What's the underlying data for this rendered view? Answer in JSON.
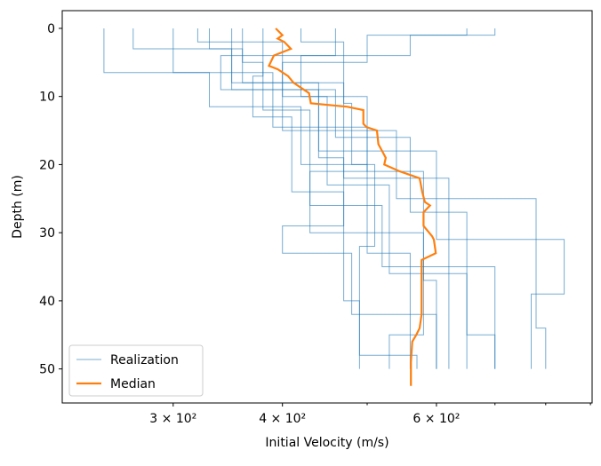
{
  "chart_data": {
    "type": "step-profile",
    "xlabel": "Initial Velocity (m/s)",
    "ylabel": "Depth (m)",
    "xscale": "log",
    "yinverted": true,
    "xlim": [
      224,
      904
    ],
    "ylim": [
      55,
      -2.6
    ],
    "xticks": [
      {
        "value": 300,
        "label": "3 × 10²"
      },
      {
        "value": 400,
        "label": "4 × 10²"
      },
      {
        "value": 600,
        "label": "6 × 10²"
      }
    ],
    "xminor_ticks": [
      500,
      700,
      800,
      900
    ],
    "yticks": [
      0,
      10,
      20,
      30,
      40,
      50
    ],
    "legend": "lower left",
    "series": [
      {
        "name": "Realization",
        "color": "#1f77b4",
        "lines": [
          {
            "x": [
              250,
              250,
              330,
              330,
              420,
              420,
              500,
              500,
              560,
              560
            ],
            "y": [
              0,
              6.5,
              6.5,
              11.5,
              11.5,
              20,
              20,
              33,
              33,
              50
            ]
          },
          {
            "x": [
              270,
              270,
              360,
              360,
              470,
              470,
              620,
              620
            ],
            "y": [
              0,
              3,
              3,
              8,
              8,
              22,
              22,
              50
            ]
          },
          {
            "x": [
              320,
              320,
              400,
              400,
              450,
              450,
              540,
              540,
              780,
              780,
              800,
              800
            ],
            "y": [
              0,
              2,
              2,
              10,
              10,
              15,
              15,
              25,
              25,
              44,
              44,
              50
            ]
          },
          {
            "x": [
              360,
              360,
              380,
              380,
              430,
              430,
              520,
              520,
              700,
              700
            ],
            "y": [
              0,
              5,
              5,
              12,
              12,
              26,
              26,
              35,
              35,
              50
            ]
          },
          {
            "x": [
              460,
              460,
              340,
              340,
              440,
              440,
              600,
              600,
              840,
              840,
              770,
              770
            ],
            "y": [
              0,
              4,
              4,
              9,
              9,
              18,
              18,
              31,
              31,
              39,
              39,
              50
            ]
          },
          {
            "x": [
              700,
              700,
              560,
              560,
              420,
              420,
              500,
              500,
              580,
              580,
              600,
              600
            ],
            "y": [
              0,
              1,
              1,
              4,
              4,
              10,
              10,
              21,
              21,
              37,
              37,
              50
            ]
          },
          {
            "x": [
              380,
              380,
              370,
              370,
              410,
              410,
              470,
              470,
              490,
              490
            ],
            "y": [
              0,
              7,
              7,
              13,
              13,
              24,
              24,
              40,
              40,
              50
            ]
          },
          {
            "x": [
              300,
              300,
              390,
              390,
              500,
              500,
              430,
              430,
              580,
              580,
              530,
              530
            ],
            "y": [
              0,
              6.5,
              6.5,
              14.5,
              14.5,
              21,
              21,
              30,
              30,
              45,
              45,
              50
            ]
          },
          {
            "x": [
              330,
              330,
              350,
              350,
              460,
              460,
              560,
              560,
              650,
              650,
              700,
              700
            ],
            "y": [
              0,
              3,
              3,
              9,
              9,
              16,
              16,
              27,
              27,
              45,
              45,
              50
            ]
          },
          {
            "x": [
              420,
              420,
              470,
              470,
              480,
              480,
              510,
              510,
              490,
              490,
              570,
              570
            ],
            "y": [
              0,
              2,
              2,
              11,
              11,
              20,
              20,
              32,
              32,
              48,
              48,
              50
            ]
          },
          {
            "x": [
              650,
              650,
              500,
              500,
              400,
              400,
              450,
              450,
              530,
              530,
              650,
              650
            ],
            "y": [
              0,
              1,
              1,
              5,
              5,
              15,
              15,
              23,
              23,
              36,
              36,
              50
            ]
          },
          {
            "x": [
              350,
              350,
              440,
              440,
              470,
              470,
              400,
              400,
              480,
              480,
              600,
              600
            ],
            "y": [
              0,
              8,
              8,
              19,
              19,
              29,
              29,
              33,
              33,
              42,
              42,
              50
            ]
          }
        ]
      },
      {
        "name": "Median",
        "color": "#ff7f0e",
        "x": [
          393,
          400,
          395,
          402,
          409,
          391,
          386,
          395,
          406,
          412,
          429,
          431,
          474,
          495,
          495,
          499,
          513,
          515,
          520,
          525,
          523,
          545,
          574,
          578,
          582,
          590,
          580,
          580,
          593,
          596,
          599,
          577,
          577,
          577,
          574,
          569,
          563,
          561,
          561,
          561
        ],
        "y": [
          0,
          1,
          1.5,
          2,
          3,
          4,
          5.5,
          6,
          7,
          8,
          9.5,
          11,
          11.5,
          12,
          14,
          14.5,
          15,
          17,
          18,
          19,
          20,
          21,
          22,
          24,
          25.5,
          26,
          27,
          29,
          30.5,
          31,
          33,
          34,
          38,
          42,
          44,
          45,
          46,
          49,
          50,
          52.5
        ]
      }
    ]
  }
}
